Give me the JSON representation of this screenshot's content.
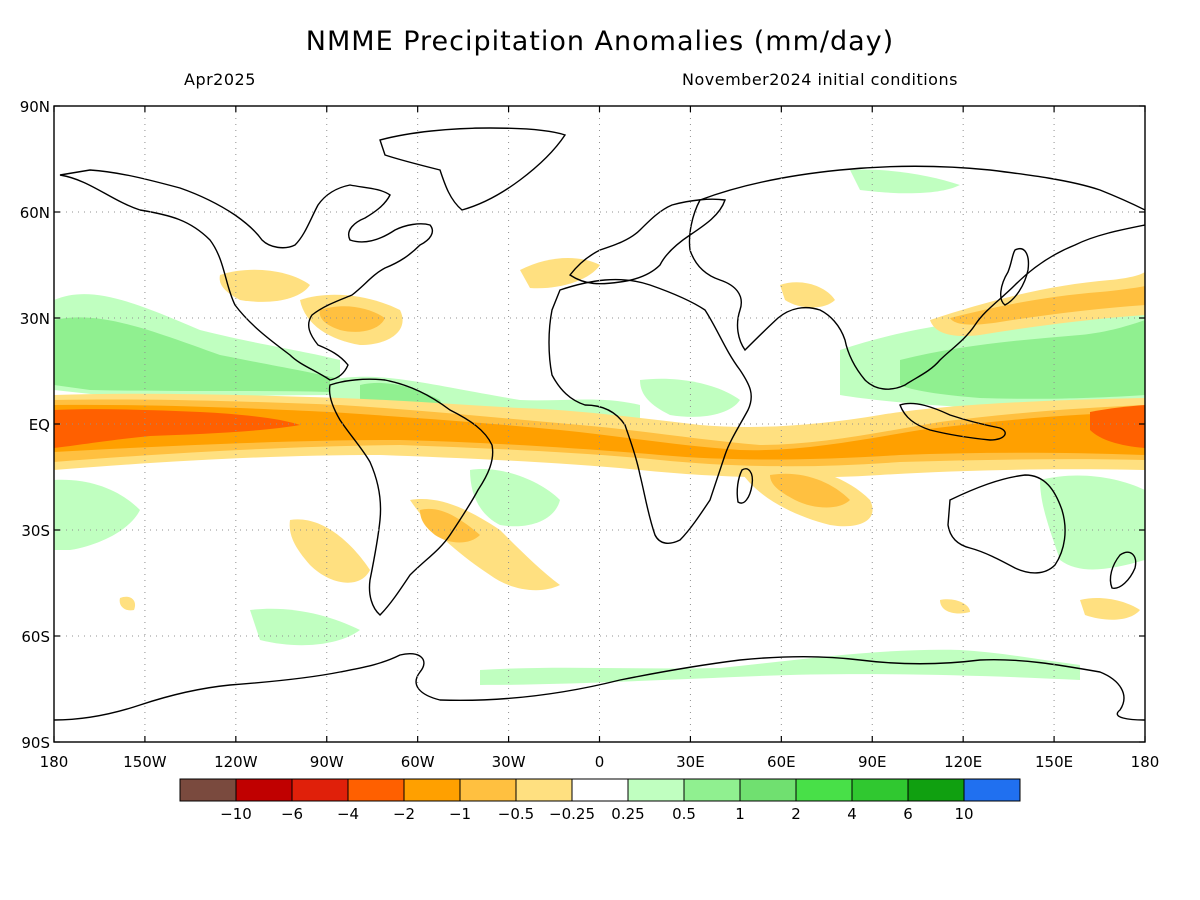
{
  "header": {
    "title": "NMME Precipitation Anomalies (mm/day)",
    "subtitle_left": "Apr2025",
    "subtitle_right": "November2024 initial conditions"
  },
  "axes": {
    "lat_labels": [
      "90N",
      "60N",
      "30N",
      "EQ",
      "30S",
      "60S",
      "90S"
    ],
    "lat_values": [
      90,
      60,
      30,
      0,
      -30,
      -60,
      -90
    ],
    "lon_labels": [
      "180",
      "150W",
      "120W",
      "90W",
      "60W",
      "30W",
      "0",
      "30E",
      "60E",
      "90E",
      "120E",
      "150E",
      "180"
    ],
    "lon_values": [
      -180,
      -150,
      -120,
      -90,
      -60,
      -30,
      0,
      30,
      60,
      90,
      120,
      150,
      180
    ]
  },
  "colorbar": {
    "colors": [
      "#7a4a3e",
      "#c00000",
      "#e0200a",
      "#ff6000",
      "#ffa000",
      "#ffc040",
      "#ffe080",
      "#ffffff",
      "#c0ffc0",
      "#90f090",
      "#70e070",
      "#48e048",
      "#30c830",
      "#10a010",
      "#2070f0"
    ],
    "labels": [
      "−10",
      "−6",
      "−4",
      "−2",
      "−1",
      "−0.5",
      "−0.25",
      "0.25",
      "0.5",
      "1",
      "2",
      "4",
      "6",
      "10"
    ]
  },
  "legend_colors": {
    "dry_light": "#ffe080",
    "dry_mid": "#ffc040",
    "dry_strong": "#ffa000",
    "dry_heavy": "#ff6000",
    "wet_light": "#c0ffc0",
    "wet_mid": "#90f090",
    "wet_strong": "#70e070"
  }
}
